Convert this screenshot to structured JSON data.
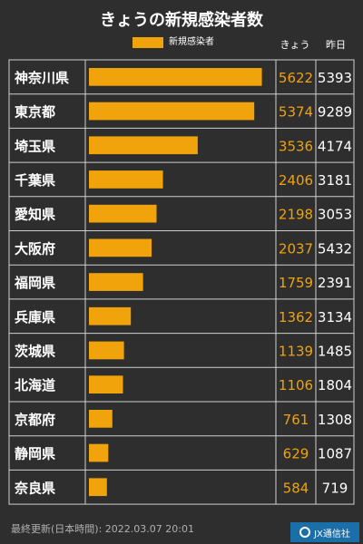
{
  "title": "きょうの新規感染者数",
  "legend": {
    "label": "新規感染者"
  },
  "columns": {
    "today": "きょう",
    "yesterday": "昨日"
  },
  "footer": {
    "timestamp": "最終更新(日本時間): 2022.03.07 20:01"
  },
  "logo": {
    "text": "JX通信社"
  },
  "colors": {
    "bar": "#f0a30a",
    "today_text": "#f0a30a",
    "grid": "#d0d0d0",
    "background": "#2e2e2e"
  },
  "chart_data": {
    "type": "bar",
    "orientation": "horizontal",
    "title": "きょうの新規感染者数",
    "categories": [
      "神奈川県",
      "東京都",
      "埼玉県",
      "千葉県",
      "愛知県",
      "大阪府",
      "福岡県",
      "兵庫県",
      "茨城県",
      "北海道",
      "京都府",
      "静岡県",
      "奈良県"
    ],
    "series": [
      {
        "name": "新規感染者",
        "values": [
          5622,
          5374,
          3536,
          2406,
          2198,
          2037,
          1759,
          1362,
          1139,
          1106,
          761,
          629,
          584
        ]
      }
    ],
    "yesterday": [
      5393,
      9289,
      4174,
      3181,
      3053,
      5432,
      2391,
      3134,
      1485,
      1804,
      1308,
      1087,
      719
    ],
    "xlim": [
      0,
      5900
    ],
    "grid": true,
    "legend_position": "top-center"
  }
}
